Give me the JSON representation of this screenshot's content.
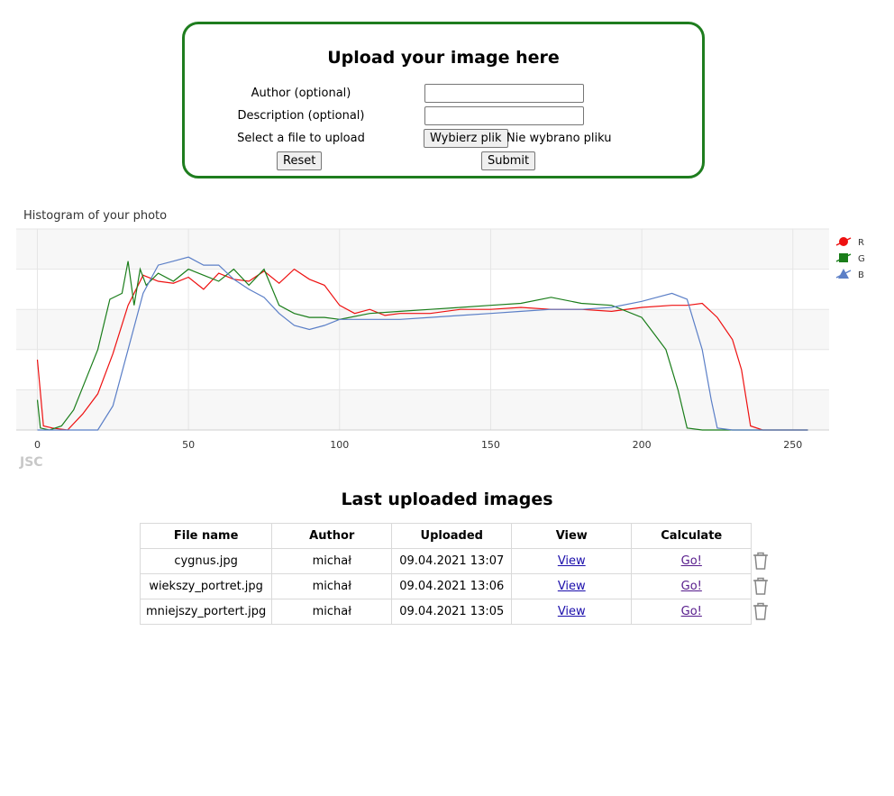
{
  "upload": {
    "title": "Upload your image here",
    "author_label": "Author (optional)",
    "description_label": "Description (optional)",
    "file_label": "Select a file to upload",
    "author_value": "",
    "description_value": "",
    "choose_file_button": "Wybierz plik",
    "file_status": "Nie wybrano pliku",
    "reset_button": "Reset",
    "submit_button": "Submit"
  },
  "chart_title": "Histogram of your photo",
  "chart_data": {
    "type": "line",
    "title": "Histogram of your photo",
    "xlabel": "",
    "ylabel": "",
    "xlim": [
      -7,
      262
    ],
    "ylim": [
      0,
      1
    ],
    "x_ticks": [
      0,
      50,
      100,
      150,
      200,
      250
    ],
    "grid": true,
    "legend_position": "right",
    "series": [
      {
        "name": "R",
        "color": "#e11",
        "marker": "circle",
        "x": [
          0,
          2,
          5,
          10,
          15,
          20,
          25,
          30,
          35,
          40,
          45,
          50,
          55,
          60,
          65,
          70,
          75,
          80,
          85,
          90,
          95,
          100,
          105,
          110,
          115,
          120,
          130,
          140,
          150,
          160,
          170,
          180,
          190,
          200,
          210,
          215,
          220,
          225,
          230,
          233,
          236,
          240,
          250,
          255
        ],
        "y": [
          0.35,
          0.02,
          0.01,
          0.0,
          0.08,
          0.18,
          0.38,
          0.62,
          0.77,
          0.74,
          0.73,
          0.76,
          0.7,
          0.78,
          0.75,
          0.74,
          0.79,
          0.73,
          0.8,
          0.75,
          0.72,
          0.62,
          0.58,
          0.6,
          0.57,
          0.58,
          0.58,
          0.6,
          0.6,
          0.61,
          0.6,
          0.6,
          0.59,
          0.61,
          0.62,
          0.62,
          0.63,
          0.56,
          0.45,
          0.3,
          0.02,
          0.0,
          0.0,
          0.0
        ]
      },
      {
        "name": "G",
        "color": "#1a7d1a",
        "marker": "square",
        "x": [
          0,
          1,
          4,
          8,
          12,
          16,
          20,
          24,
          28,
          30,
          32,
          34,
          36,
          40,
          45,
          50,
          55,
          60,
          65,
          70,
          75,
          80,
          85,
          90,
          95,
          100,
          110,
          120,
          130,
          140,
          150,
          160,
          170,
          180,
          190,
          200,
          205,
          208,
          212,
          215,
          220,
          225,
          230,
          240,
          250,
          255
        ],
        "y": [
          0.15,
          0.01,
          0.0,
          0.02,
          0.1,
          0.25,
          0.4,
          0.65,
          0.68,
          0.84,
          0.62,
          0.8,
          0.72,
          0.78,
          0.74,
          0.8,
          0.77,
          0.74,
          0.8,
          0.72,
          0.8,
          0.62,
          0.58,
          0.56,
          0.56,
          0.55,
          0.58,
          0.59,
          0.6,
          0.61,
          0.62,
          0.63,
          0.66,
          0.63,
          0.62,
          0.56,
          0.46,
          0.4,
          0.2,
          0.01,
          0.0,
          0.0,
          0.0,
          0.0,
          0.0,
          0.0
        ]
      },
      {
        "name": "B",
        "color": "#5b7fc7",
        "marker": "triangle",
        "x": [
          0,
          10,
          20,
          25,
          30,
          35,
          40,
          45,
          50,
          55,
          60,
          65,
          70,
          75,
          80,
          85,
          90,
          95,
          100,
          110,
          120,
          130,
          140,
          150,
          160,
          170,
          180,
          190,
          200,
          205,
          210,
          215,
          220,
          223,
          225,
          230,
          240,
          250,
          255
        ],
        "y": [
          0.0,
          0.0,
          0.0,
          0.12,
          0.4,
          0.68,
          0.82,
          0.84,
          0.86,
          0.82,
          0.82,
          0.75,
          0.7,
          0.66,
          0.58,
          0.52,
          0.5,
          0.52,
          0.55,
          0.55,
          0.55,
          0.56,
          0.57,
          0.58,
          0.59,
          0.6,
          0.6,
          0.61,
          0.64,
          0.66,
          0.68,
          0.65,
          0.4,
          0.15,
          0.01,
          0.0,
          0.0,
          0.0,
          0.0
        ]
      }
    ]
  },
  "table": {
    "title": "Last uploaded images",
    "headers": [
      "File name",
      "Author",
      "Uploaded",
      "View",
      "Calculate"
    ],
    "rows": [
      {
        "file": "cygnus.jpg",
        "author": "michał",
        "uploaded": "09.04.2021 13:07",
        "view": "View",
        "calc": "Go!"
      },
      {
        "file": "wiekszy_portret.jpg",
        "author": "michał",
        "uploaded": "09.04.2021 13:06",
        "view": "View",
        "calc": "Go!"
      },
      {
        "file": "mniejszy_portert.jpg",
        "author": "michał",
        "uploaded": "09.04.2021 13:05",
        "view": "View",
        "calc": "Go!"
      }
    ],
    "delete_icon": "trash-icon"
  },
  "watermark": "JSC"
}
